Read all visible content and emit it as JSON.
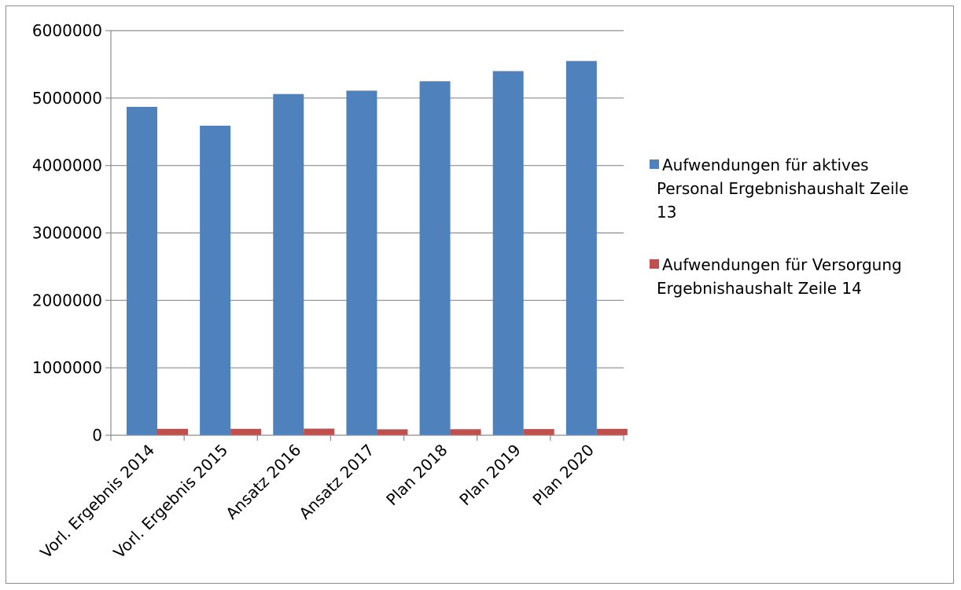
{
  "chart_data": {
    "type": "bar",
    "categories": [
      "Vorl. Ergebnis 2014",
      "Vorl. Ergebnis 2015",
      "Ansatz 2016",
      "Ansatz 2017",
      "Plan 2018",
      "Plan 2019",
      "Plan 2020"
    ],
    "series": [
      {
        "name": "Aufwendungen für aktives Personal Ergebnishaushalt Zeile 13",
        "legend_lines": [
          "Aufwendungen für aktives",
          "Personal Ergebnishaushalt Zeile",
          "13"
        ],
        "color": "#4F81BD",
        "values": [
          4870000,
          4590000,
          5060000,
          5110000,
          5250000,
          5400000,
          5550000
        ]
      },
      {
        "name": "Aufwendungen für Versorgung Ergebnishaushalt Zeile 14",
        "legend_lines": [
          "Aufwendungen für Versorgung",
          "Ergebnishaushalt Zeile 14"
        ],
        "color": "#C0504D",
        "values": [
          95000,
          95000,
          98000,
          88000,
          90000,
          92000,
          95000
        ]
      }
    ],
    "y_ticks": [
      "0",
      "1000000",
      "2000000",
      "3000000",
      "4000000",
      "5000000",
      "6000000"
    ],
    "ylim": [
      0,
      6000000
    ],
    "grid": true,
    "legend_position": "right"
  }
}
